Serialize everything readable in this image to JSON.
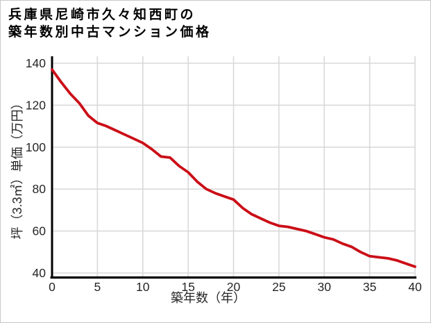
{
  "page": {
    "background": "#ffffff",
    "border_color": "#c8c8c8"
  },
  "chart_data": {
    "type": "line",
    "title": "兵庫県尼崎市久々知西町の築年数別中古マンション価格",
    "title_lines": [
      "兵庫県尼崎市久々知西町の",
      "築年数別中古マンション価格"
    ],
    "xlabel": "築年数（年）",
    "ylabel": "坪（3.3㎡）単価（万円）",
    "x": [
      0,
      1,
      2,
      3,
      4,
      5,
      6,
      7,
      8,
      9,
      10,
      11,
      12,
      13,
      14,
      15,
      16,
      17,
      18,
      19,
      20,
      21,
      22,
      23,
      24,
      25,
      26,
      27,
      28,
      29,
      30,
      31,
      32,
      33,
      34,
      35,
      36,
      37,
      38,
      39,
      40
    ],
    "values": [
      137,
      131,
      125.5,
      121,
      115,
      111.5,
      110,
      108,
      106,
      104,
      102,
      99,
      95.5,
      95,
      91,
      88,
      83.5,
      80,
      78,
      76.5,
      75,
      71,
      68,
      66,
      64,
      62.5,
      62,
      61,
      60,
      58.5,
      57,
      56,
      54,
      52.5,
      50,
      48,
      47.5,
      47,
      46,
      44.5,
      43
    ],
    "xlim": [
      0,
      40
    ],
    "ylim": [
      40,
      140
    ],
    "xticks": [
      0,
      5,
      10,
      15,
      20,
      25,
      30,
      35,
      40
    ],
    "yticks": [
      40,
      60,
      80,
      100,
      120,
      140
    ],
    "grid": true,
    "grid_color": "#d9d9d9",
    "legend": "none",
    "line_color": "#cb0e17",
    "axis_color": "#000000",
    "tick_text_color": "#262626",
    "title_text_color": "#000000"
  }
}
